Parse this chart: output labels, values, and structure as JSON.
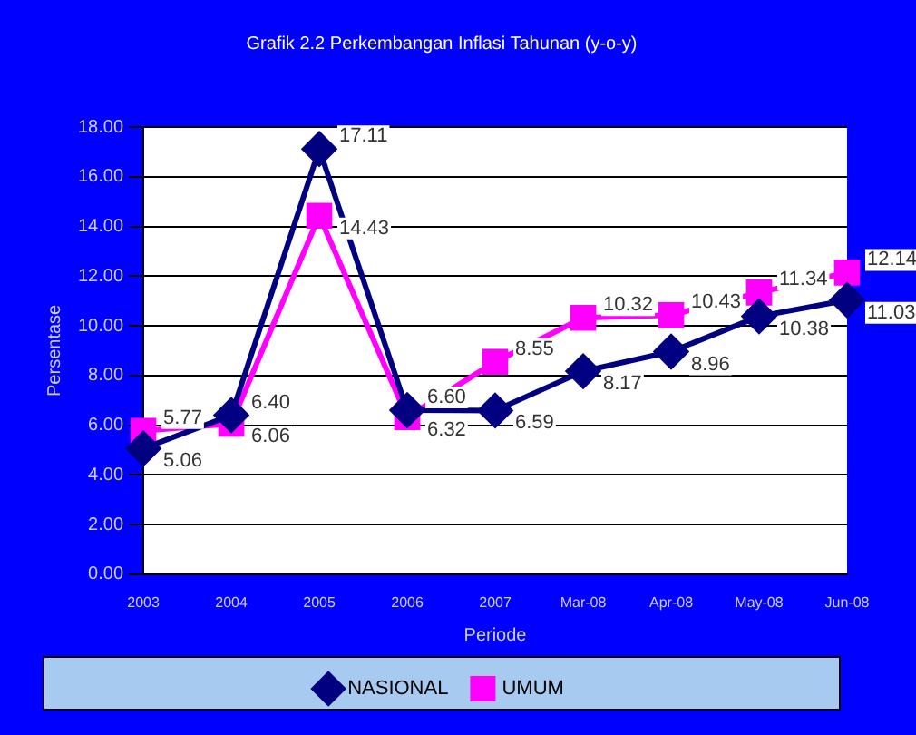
{
  "chart_data": {
    "type": "line",
    "title": "Grafik 2.2 Perkembangan Inflasi Tahunan (y-o-y)",
    "xlabel": "Periode",
    "ylabel": "Persentase",
    "categories": [
      "2003",
      "2004",
      "2005",
      "2006",
      "2007",
      "Mar-08",
      "Apr-08",
      "May-08",
      "Jun-08"
    ],
    "series": [
      {
        "name": "NASIONAL",
        "color": "#000080",
        "marker": "diamond",
        "values": [
          5.06,
          6.4,
          17.11,
          6.6,
          6.59,
          8.17,
          8.96,
          10.38,
          11.03
        ],
        "value_labels": [
          "5.06",
          "6.40",
          "17.11",
          "6.60",
          "6.59",
          "8.17",
          "8.96",
          "10.38",
          "11.03"
        ]
      },
      {
        "name": "UMUM",
        "color": "#ff00ff",
        "marker": "square",
        "values": [
          5.77,
          6.06,
          14.43,
          6.32,
          8.55,
          10.32,
          10.43,
          11.34,
          12.14
        ],
        "value_labels": [
          "5.77",
          "6.06",
          "14.43",
          "6.32",
          "8.55",
          "10.32",
          "10.43",
          "11.34",
          "12.14"
        ]
      }
    ],
    "ylim": [
      0,
      18
    ],
    "yticks": [
      {
        "value": 0,
        "label": "0.00"
      },
      {
        "value": 2,
        "label": "2.00"
      },
      {
        "value": 4,
        "label": "4.00"
      },
      {
        "value": 6,
        "label": "6.00"
      },
      {
        "value": 8,
        "label": "8.00"
      },
      {
        "value": 10,
        "label": "10.00"
      },
      {
        "value": 12,
        "label": "12.00"
      },
      {
        "value": 14,
        "label": "14.00"
      },
      {
        "value": 16,
        "label": "16.00"
      },
      {
        "value": 18,
        "label": "18.00"
      }
    ],
    "grid": "y",
    "legend": "bottom",
    "line_style": "solid"
  }
}
